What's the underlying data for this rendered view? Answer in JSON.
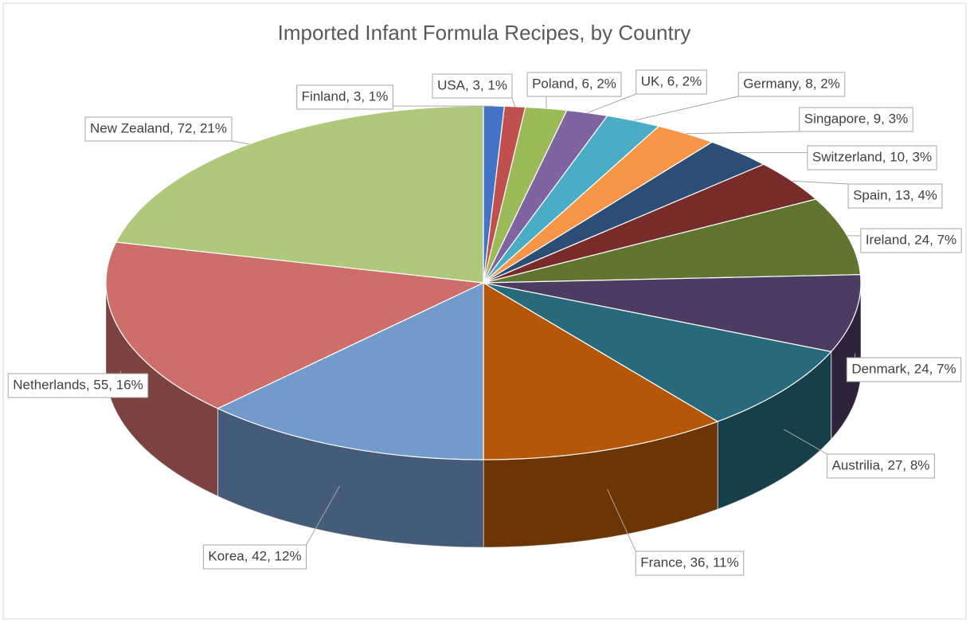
{
  "chart_data": {
    "type": "pie3d",
    "title": "Imported Infant Formula Recipes, by Country",
    "values": [
      3,
      3,
      6,
      6,
      8,
      9,
      10,
      13,
      24,
      24,
      27,
      36,
      42,
      55,
      72
    ],
    "value_labels": [
      "Finland, 3, 1%",
      "USA, 3, 1%",
      "Poland, 6, 2%",
      "UK, 6, 2%",
      "Germany, 8, 2%",
      "Singapore, 9, 3%",
      "Switzerland, 10, 3%",
      "Spain, 13, 4%",
      "Ireland, 24, 7%",
      "Denmark, 24, 7%",
      "Austrilia, 27, 8%",
      "France, 36, 11%",
      "Korea, 42, 12%",
      "Netherlands, 55, 16%",
      "New Zealand, 72, 21%"
    ],
    "colors": [
      "#4472c4",
      "#c0504d",
      "#9bbb59",
      "#8064a2",
      "#4bacc6",
      "#f79646",
      "#2c4d75",
      "#772c2a",
      "#5f7530",
      "#4d3b62",
      "#276a7c",
      "#b65708",
      "#729aca",
      "#cd6e6a",
      "#afc97a"
    ]
  }
}
